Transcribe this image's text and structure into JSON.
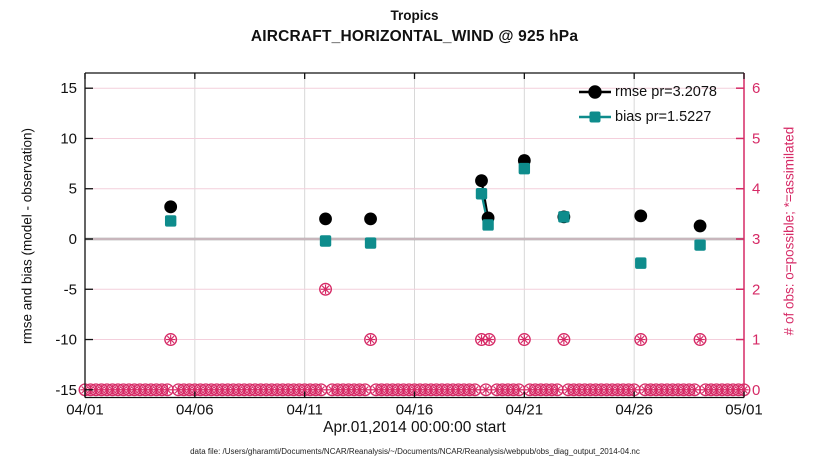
{
  "figure": {
    "title_line1": "Tropics",
    "title_line2": "AIRCRAFT_HORIZONTAL_WIND @ 925 hPa",
    "xlabel": "Apr.01,2014 00:00:00 start",
    "ylabel_left": "rmse and bias (model - observation)",
    "ylabel_right": "# of obs: o=possible; *=assimilated",
    "footer": "data file: /Users/gharamti/Documents/NCAR/Reanalysis/~/Documents/NCAR/Reanalysis/webpub/obs_diag_output_2014-04.nc"
  },
  "legend": {
    "rmse_label": "rmse pr=3.2078",
    "bias_label": "bias pr=1.5227"
  },
  "colors": {
    "rmse": "#000000",
    "bias": "#0E8C8C",
    "obs": "#D62A66",
    "zero_line": "#9C9C9C",
    "grid_vertical": "#D8D8D8",
    "grid_horizontal": "#F4CFDC",
    "axis": "#111111"
  },
  "chart_data": {
    "type": "line",
    "title": "Tropics — AIRCRAFT_HORIZONTAL_WIND @ 925 hPa",
    "x_axis": {
      "start_label": "Apr.01,2014 00:00:00 start",
      "tick_days": [
        0,
        5,
        10,
        15,
        20,
        25,
        30
      ],
      "tick_labels": [
        "04/01",
        "04/06",
        "04/11",
        "04/16",
        "04/21",
        "04/26",
        "05/01"
      ],
      "range_days": [
        0,
        30
      ]
    },
    "y_left": {
      "label": "rmse and bias (model - observation)",
      "ticks": [
        15,
        10,
        5,
        0,
        -5,
        -10,
        -15
      ],
      "range": [
        -16.2,
        16.5
      ]
    },
    "y_right": {
      "label": "# of obs: o=possible; *=assimilated",
      "ticks": [
        0,
        1,
        2,
        3,
        4,
        5,
        6
      ],
      "range": [
        -0.15,
        6.3
      ]
    },
    "series": [
      {
        "name": "rmse pr=3.2078",
        "marker": "circle",
        "points": [
          {
            "day": 3.9,
            "value": 3.2
          },
          {
            "day": 10.95,
            "value": 2.0
          },
          {
            "day": 13.0,
            "value": 2.0
          },
          {
            "day": 18.05,
            "value": 5.8
          },
          {
            "day": 18.35,
            "value": 2.1
          },
          {
            "day": 20.0,
            "value": 7.8
          },
          {
            "day": 21.8,
            "value": 2.2
          },
          {
            "day": 25.3,
            "value": 2.3
          },
          {
            "day": 28.0,
            "value": 1.3
          }
        ]
      },
      {
        "name": "bias pr=1.5227",
        "marker": "square",
        "points": [
          {
            "day": 3.9,
            "value": 1.8
          },
          {
            "day": 10.95,
            "value": -0.2
          },
          {
            "day": 13.0,
            "value": -0.4
          },
          {
            "day": 18.05,
            "value": 4.5
          },
          {
            "day": 18.35,
            "value": 1.4
          },
          {
            "day": 20.0,
            "value": 7.0
          },
          {
            "day": 21.8,
            "value": 2.2
          },
          {
            "day": 25.3,
            "value": -2.4
          },
          {
            "day": 28.0,
            "value": -0.6
          }
        ]
      }
    ],
    "obs_counts": {
      "nonzero": [
        {
          "day": 3.9,
          "count": 1
        },
        {
          "day": 10.95,
          "count": 2
        },
        {
          "day": 13.0,
          "count": 1
        },
        {
          "day": 18.05,
          "count": 1
        },
        {
          "day": 18.4,
          "count": 1
        },
        {
          "day": 20.0,
          "count": 1
        },
        {
          "day": 21.8,
          "count": 1
        },
        {
          "day": 25.3,
          "count": 1
        },
        {
          "day": 28.0,
          "count": 1
        }
      ],
      "zero_row": {
        "start_day": 0,
        "end_day": 30,
        "step_day": 0.25,
        "count": 0
      }
    }
  }
}
